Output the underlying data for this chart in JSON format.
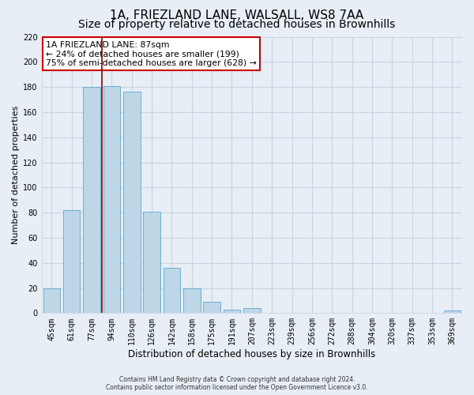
{
  "title": "1A, FRIEZLAND LANE, WALSALL, WS8 7AA",
  "subtitle": "Size of property relative to detached houses in Brownhills",
  "xlabel": "Distribution of detached houses by size in Brownhills",
  "ylabel": "Number of detached properties",
  "bar_labels": [
    "45sqm",
    "61sqm",
    "77sqm",
    "94sqm",
    "110sqm",
    "126sqm",
    "142sqm",
    "158sqm",
    "175sqm",
    "191sqm",
    "207sqm",
    "223sqm",
    "239sqm",
    "256sqm",
    "272sqm",
    "288sqm",
    "304sqm",
    "320sqm",
    "337sqm",
    "353sqm",
    "369sqm"
  ],
  "bar_heights": [
    20,
    82,
    180,
    181,
    176,
    81,
    36,
    20,
    9,
    3,
    4,
    0,
    0,
    0,
    0,
    0,
    0,
    0,
    0,
    0,
    2
  ],
  "bar_color": "#bdd7e7",
  "bar_edge_color": "#6aaed6",
  "vline_color": "#8b0000",
  "ylim": [
    0,
    220
  ],
  "yticks": [
    0,
    20,
    40,
    60,
    80,
    100,
    120,
    140,
    160,
    180,
    200,
    220
  ],
  "annotation_title": "1A FRIEZLAND LANE: 87sqm",
  "annotation_line1": "← 24% of detached houses are smaller (199)",
  "annotation_line2": "75% of semi-detached houses are larger (628) →",
  "annotation_box_color": "#ffffff",
  "annotation_box_edge": "#cc0000",
  "footer_line1": "Contains HM Land Registry data © Crown copyright and database right 2024.",
  "footer_line2": "Contains public sector information licensed under the Open Government Licence v3.0.",
  "bg_color": "#e8eef5",
  "grid_color": "#c8d4e0",
  "title_fontsize": 11,
  "subtitle_fontsize": 10,
  "tick_fontsize": 7,
  "ylabel_fontsize": 8,
  "xlabel_fontsize": 8.5
}
